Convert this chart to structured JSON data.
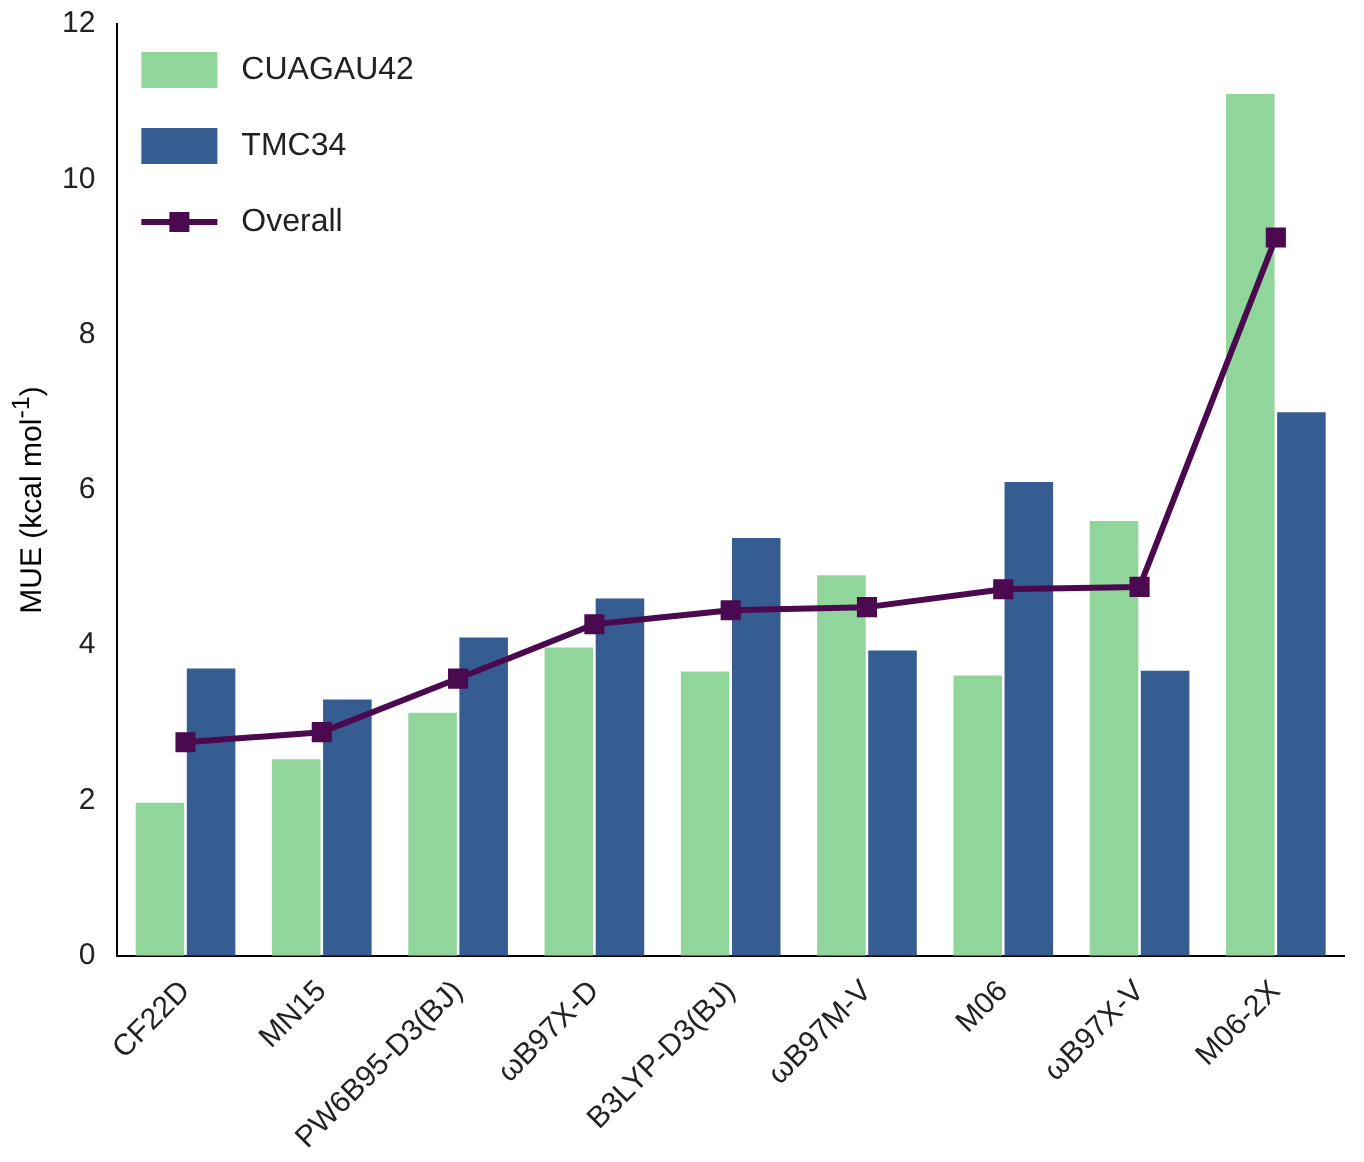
{
  "chart_data": {
    "type": "bar",
    "ylabel": "MUE (kcal mol$^{-1}$)",
    "categories": [
      "CF22D",
      "MN15",
      "PW6B95-D3(BJ)",
      "ωB97X-D",
      "B3LYP-D3(BJ)",
      "ωB97M-V",
      "M06",
      "ωB97X-V",
      "M06-2X"
    ],
    "series": [
      {
        "name": "CUAGAU42",
        "color": "#90d69b",
        "values": [
          1.97,
          2.53,
          3.13,
          3.97,
          3.66,
          4.9,
          3.61,
          5.6,
          11.1
        ]
      },
      {
        "name": "TMC34",
        "color": "#355d91",
        "values": [
          3.7,
          3.3,
          4.1,
          4.6,
          5.38,
          3.93,
          6.1,
          3.67,
          7.0
        ]
      },
      {
        "name": "Overall",
        "type": "line",
        "color": "#4b0a50",
        "marker": "square",
        "values": [
          2.75,
          2.88,
          3.57,
          4.27,
          4.45,
          4.49,
          4.72,
          4.75,
          9.25
        ]
      }
    ],
    "ylim": [
      0,
      12
    ],
    "yticks": [
      0,
      2,
      4,
      6,
      8,
      10,
      12
    ],
    "grid": false,
    "legend": "top left"
  }
}
